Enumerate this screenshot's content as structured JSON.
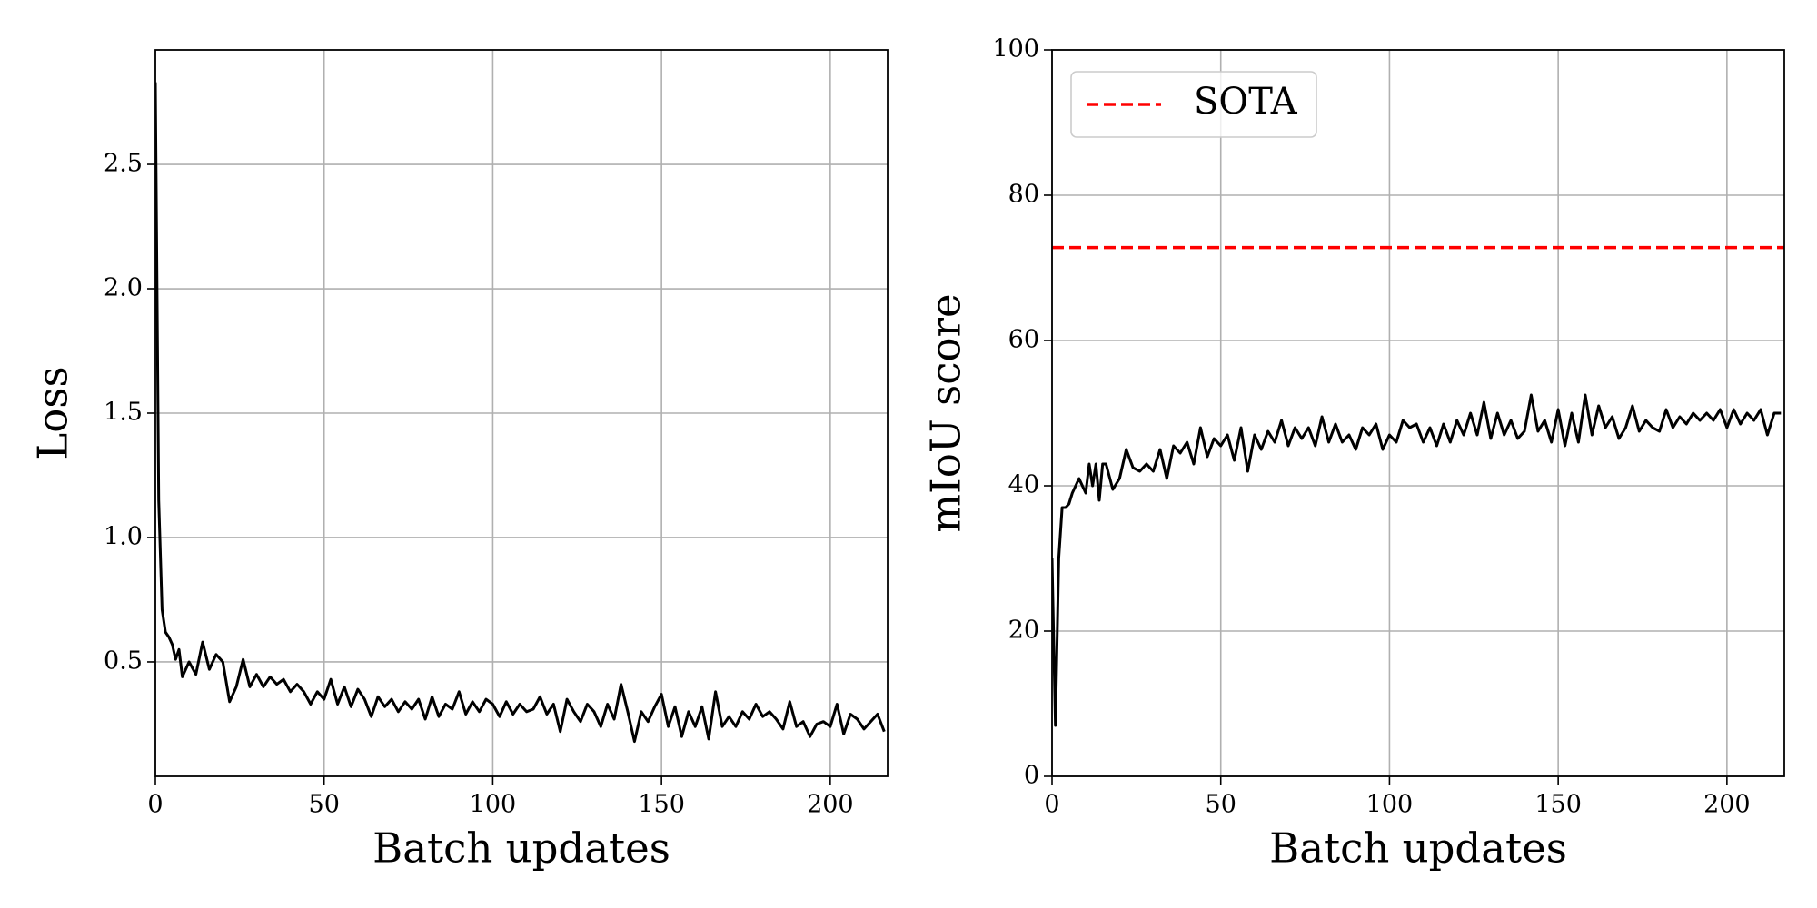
{
  "chart_data": [
    {
      "type": "line",
      "ylabel": "Loss",
      "xlabel": "Batch updates",
      "xlim": [
        0,
        217
      ],
      "ylim": [
        0.04,
        2.96
      ],
      "xticks": [
        0,
        50,
        100,
        150,
        200
      ],
      "yticks": [
        0.5,
        {
          "value": 1,
          "label": "1.0"
        },
        1.5,
        {
          "value": 2,
          "label": "2.0"
        },
        2.5
      ],
      "grid": true,
      "x": [
        0,
        1,
        2,
        3,
        4,
        5,
        6,
        7,
        8,
        10,
        12,
        14,
        16,
        18,
        20,
        22,
        24,
        26,
        28,
        30,
        32,
        34,
        36,
        38,
        40,
        42,
        44,
        46,
        48,
        50,
        52,
        54,
        56,
        58,
        60,
        62,
        64,
        66,
        68,
        70,
        72,
        74,
        76,
        78,
        80,
        82,
        84,
        86,
        88,
        90,
        92,
        94,
        96,
        98,
        100,
        102,
        104,
        106,
        108,
        110,
        112,
        114,
        116,
        118,
        120,
        122,
        124,
        126,
        128,
        130,
        132,
        134,
        136,
        138,
        140,
        142,
        144,
        146,
        148,
        150,
        152,
        154,
        156,
        158,
        160,
        162,
        164,
        166,
        168,
        170,
        172,
        174,
        176,
        178,
        180,
        182,
        184,
        186,
        188,
        190,
        192,
        194,
        196,
        198,
        200,
        202,
        204,
        206,
        208,
        210,
        212,
        214,
        216
      ],
      "series": [
        {
          "color": "#000000",
          "values": [
            2.83,
            1.15,
            0.71,
            0.62,
            0.6,
            0.57,
            0.51,
            0.55,
            0.44,
            0.5,
            0.45,
            0.58,
            0.47,
            0.53,
            0.5,
            0.34,
            0.4,
            0.51,
            0.4,
            0.45,
            0.4,
            0.44,
            0.41,
            0.43,
            0.38,
            0.41,
            0.38,
            0.33,
            0.38,
            0.35,
            0.43,
            0.33,
            0.4,
            0.32,
            0.39,
            0.35,
            0.28,
            0.36,
            0.32,
            0.35,
            0.3,
            0.34,
            0.31,
            0.35,
            0.27,
            0.36,
            0.28,
            0.33,
            0.31,
            0.38,
            0.29,
            0.34,
            0.3,
            0.35,
            0.33,
            0.28,
            0.34,
            0.29,
            0.33,
            0.3,
            0.31,
            0.36,
            0.29,
            0.33,
            0.22,
            0.35,
            0.3,
            0.26,
            0.33,
            0.3,
            0.24,
            0.33,
            0.27,
            0.41,
            0.3,
            0.18,
            0.3,
            0.26,
            0.32,
            0.37,
            0.24,
            0.32,
            0.2,
            0.3,
            0.24,
            0.32,
            0.19,
            0.38,
            0.24,
            0.28,
            0.24,
            0.3,
            0.27,
            0.33,
            0.28,
            0.3,
            0.27,
            0.23,
            0.34,
            0.24,
            0.26,
            0.2,
            0.25,
            0.26,
            0.24,
            0.33,
            0.21,
            0.29,
            0.27,
            0.23,
            0.26,
            0.29,
            0.22
          ]
        }
      ]
    },
    {
      "type": "line",
      "ylabel": "mIoU score",
      "xlabel": "Batch updates",
      "xlim": [
        0,
        217
      ],
      "ylim": [
        0,
        100
      ],
      "xticks": [
        0,
        50,
        100,
        150,
        200
      ],
      "yticks": [
        0,
        20,
        40,
        60,
        80,
        100
      ],
      "grid": true,
      "legend": "upper left",
      "hlines": [
        {
          "name": "SOTA",
          "color": "#ff0000",
          "style": "dashed",
          "value": 72.8
        }
      ],
      "x": [
        0,
        1,
        2,
        3,
        4,
        5,
        6,
        8,
        10,
        11,
        12,
        13,
        14,
        15,
        16,
        18,
        20,
        22,
        24,
        26,
        28,
        30,
        32,
        34,
        36,
        38,
        40,
        42,
        44,
        46,
        48,
        50,
        52,
        54,
        56,
        58,
        60,
        62,
        64,
        66,
        68,
        70,
        72,
        74,
        76,
        78,
        80,
        82,
        84,
        86,
        88,
        90,
        92,
        94,
        96,
        98,
        100,
        102,
        104,
        106,
        108,
        110,
        112,
        114,
        116,
        118,
        120,
        122,
        124,
        126,
        128,
        130,
        132,
        134,
        136,
        138,
        140,
        142,
        144,
        146,
        148,
        150,
        152,
        154,
        156,
        158,
        160,
        162,
        164,
        166,
        168,
        170,
        172,
        174,
        176,
        178,
        180,
        182,
        184,
        186,
        188,
        190,
        192,
        194,
        196,
        198,
        200,
        202,
        204,
        206,
        208,
        210,
        212,
        214,
        216
      ],
      "series": [
        {
          "color": "#000000",
          "values": [
            30,
            7,
            30,
            37,
            37,
            37.5,
            39,
            41,
            39,
            43,
            40,
            43,
            38,
            43,
            43,
            39.5,
            41,
            45,
            42.5,
            42,
            43,
            42,
            45,
            41,
            45.5,
            44.5,
            46,
            43,
            48,
            44,
            46.5,
            45.5,
            47,
            43.5,
            48,
            42,
            47,
            45,
            47.5,
            46,
            49,
            45.5,
            48,
            46.5,
            48,
            45.5,
            49.5,
            46,
            48.5,
            46,
            47,
            45,
            48,
            47,
            48.5,
            45,
            47,
            46,
            49,
            48,
            48.5,
            46,
            48,
            45.5,
            48.5,
            46,
            49,
            47,
            50,
            47,
            51.5,
            46.5,
            50,
            47,
            49,
            46.5,
            47.5,
            52.5,
            47.5,
            49,
            46,
            50.5,
            45.5,
            50,
            46,
            52.5,
            47,
            51,
            48,
            49.5,
            46.5,
            48,
            51,
            47.5,
            49,
            48,
            47.5,
            50.5,
            48,
            49.5,
            48.5,
            50,
            49,
            50,
            49,
            50.5,
            48,
            50.5,
            48.5,
            50,
            49,
            50.5,
            47,
            50,
            50
          ]
        }
      ]
    }
  ]
}
